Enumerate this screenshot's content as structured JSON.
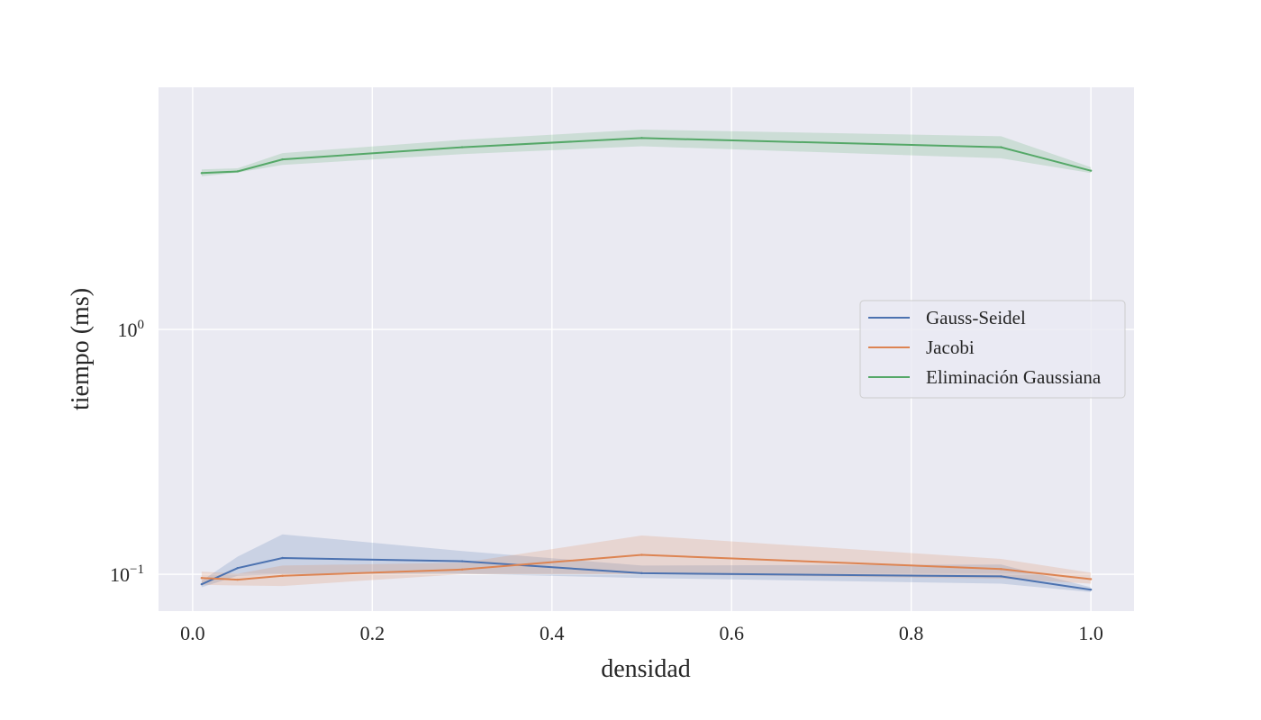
{
  "chart_data": {
    "type": "line",
    "xlabel": "densidad",
    "ylabel": "tiempo (ms)",
    "xlim": [
      -0.038,
      1.048
    ],
    "ylim": [
      0.0707,
      9.75
    ],
    "y_scale": "log",
    "grid": true,
    "legend_position": "right",
    "x_ticks": [
      {
        "value": 0.0,
        "label": "0.0"
      },
      {
        "value": 0.2,
        "label": "0.2"
      },
      {
        "value": 0.4,
        "label": "0.4"
      },
      {
        "value": 0.6,
        "label": "0.6"
      },
      {
        "value": 0.8,
        "label": "0.8"
      },
      {
        "value": 1.0,
        "label": "1.0"
      }
    ],
    "y_ticks": [
      {
        "value": 0.1,
        "base": "10",
        "exp": "−1"
      },
      {
        "value": 1,
        "base": "10",
        "exp": "0"
      }
    ],
    "x": [
      0.01,
      0.05,
      0.1,
      0.3,
      0.5,
      0.9,
      1.0
    ],
    "series": [
      {
        "name": "Gauss-Seidel",
        "color": "#4c72b0",
        "values": [
          0.091,
          0.106,
          0.1165,
          0.113,
          0.101,
          0.098,
          0.0865
        ],
        "lower": [
          0.0885,
          0.0985,
          0.1,
          0.1005,
          0.0965,
          0.0915,
          0.0845
        ],
        "upper": [
          0.094,
          0.118,
          0.1455,
          0.1245,
          0.1085,
          0.1095,
          0.0885
        ]
      },
      {
        "name": "Jacobi",
        "color": "#dd8452",
        "values": [
          0.0965,
          0.095,
          0.0985,
          0.1045,
          0.12,
          0.105,
          0.0955
        ],
        "lower": [
          0.0905,
          0.09,
          0.0895,
          0.1,
          0.1,
          0.096,
          0.0915
        ],
        "upper": [
          0.1025,
          0.1005,
          0.1085,
          0.1115,
          0.144,
          0.1155,
          0.1015
        ]
      },
      {
        "name": "Eliminación Gaussiana",
        "color": "#55a868",
        "values": [
          4.35,
          4.42,
          4.95,
          5.55,
          6.05,
          5.55,
          4.45
        ],
        "lower": [
          4.22,
          4.37,
          4.7,
          5.2,
          5.6,
          5.0,
          4.35
        ],
        "upper": [
          4.5,
          4.55,
          5.25,
          5.95,
          6.55,
          6.15,
          4.6
        ]
      }
    ]
  }
}
